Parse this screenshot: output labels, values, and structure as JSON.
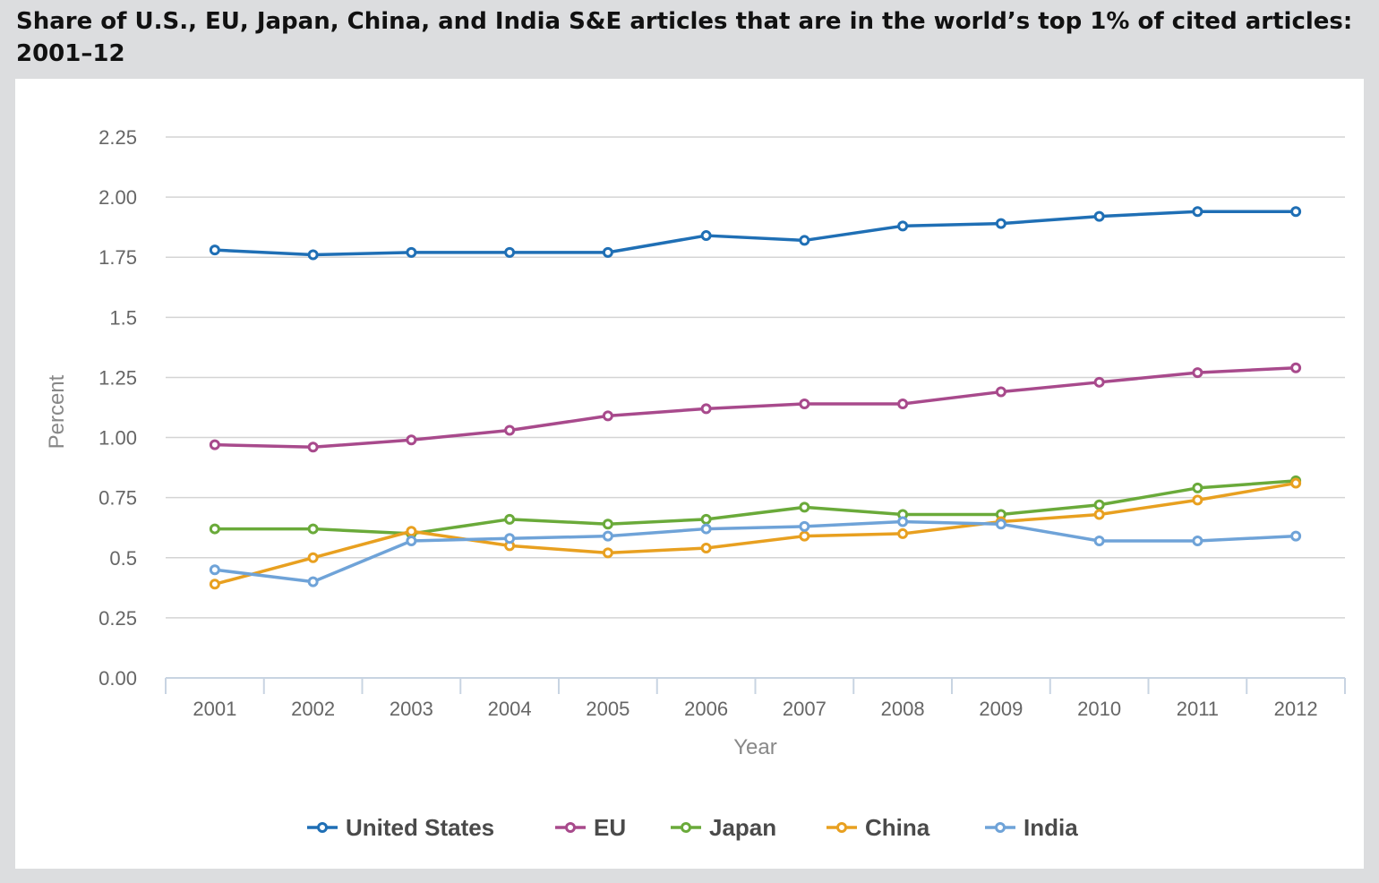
{
  "title": "Share of U.S., EU, Japan, China, and India S&E articles that are in the world’s top 1% of cited articles: 2001–12",
  "chart_data": {
    "type": "line",
    "xlabel": "Year",
    "ylabel": "Percent",
    "categories": [
      "2001",
      "2002",
      "2003",
      "2004",
      "2005",
      "2006",
      "2007",
      "2008",
      "2009",
      "2010",
      "2011",
      "2012"
    ],
    "ylim": [
      0,
      2.25
    ],
    "yticks": [
      {
        "value": 0,
        "label": "0.00"
      },
      {
        "value": 0.25,
        "label": "0.25"
      },
      {
        "value": 0.5,
        "label": "0.5"
      },
      {
        "value": 0.75,
        "label": "0.75"
      },
      {
        "value": 1.0,
        "label": "1.00"
      },
      {
        "value": 1.25,
        "label": "1.25"
      },
      {
        "value": 1.5,
        "label": "1.5"
      },
      {
        "value": 1.75,
        "label": "1.75"
      },
      {
        "value": 2.0,
        "label": "2.00"
      },
      {
        "value": 2.25,
        "label": "2.25"
      }
    ],
    "grid": true,
    "legend_position": "bottom",
    "series": [
      {
        "name": "United States",
        "color": "#1f6fb5",
        "values": [
          1.78,
          1.76,
          1.77,
          1.77,
          1.77,
          1.84,
          1.82,
          1.88,
          1.89,
          1.92,
          1.94,
          1.94
        ]
      },
      {
        "name": "EU",
        "color": "#a84a8c",
        "values": [
          0.97,
          0.96,
          0.99,
          1.03,
          1.09,
          1.12,
          1.14,
          1.14,
          1.19,
          1.23,
          1.27,
          1.29
        ]
      },
      {
        "name": "Japan",
        "color": "#6aaa3a",
        "values": [
          0.62,
          0.62,
          0.6,
          0.66,
          0.64,
          0.66,
          0.71,
          0.68,
          0.68,
          0.72,
          0.79,
          0.82
        ]
      },
      {
        "name": "China",
        "color": "#e8a020",
        "values": [
          0.39,
          0.5,
          0.61,
          0.55,
          0.52,
          0.54,
          0.59,
          0.6,
          0.65,
          0.68,
          0.74,
          0.81
        ]
      },
      {
        "name": "India",
        "color": "#6fa3d8",
        "values": [
          0.45,
          0.4,
          0.57,
          0.58,
          0.59,
          0.62,
          0.63,
          0.65,
          0.64,
          0.57,
          0.57,
          0.59
        ]
      }
    ]
  }
}
